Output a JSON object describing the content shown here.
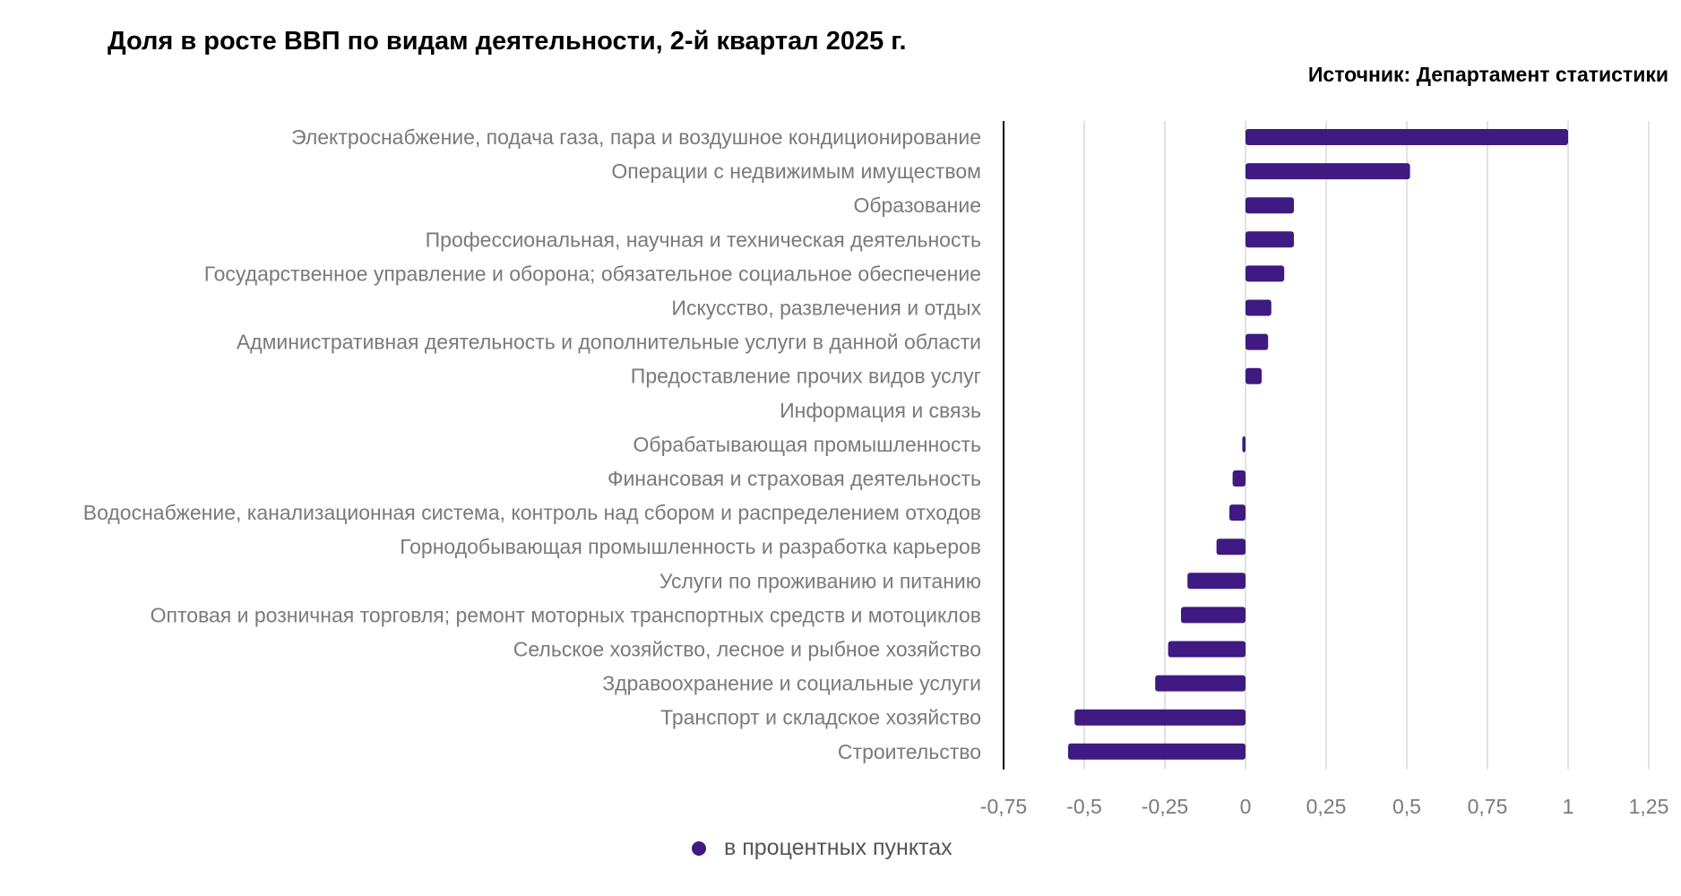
{
  "header": {
    "title": "Доля в росте ВВП по видам деятельности, 2-й квартал 2025 г.",
    "source": "Источник: Департамент статистики"
  },
  "colors": {
    "bar": "#3f1a82",
    "grid": "#d9d9d9",
    "axis": "#000000",
    "label": "#7a7a7a"
  },
  "chart_data": {
    "type": "bar",
    "orientation": "horizontal",
    "title": "Доля в росте ВВП по видам деятельности, 2-й квартал 2025 г.",
    "xlabel": "",
    "ylabel": "",
    "xlim": [
      -0.75,
      1.25
    ],
    "grid": true,
    "legend_position": "bottom-center",
    "categories": [
      "Электроснабжение, подача газа, пара и воздушное кондиционирование",
      "Операции с недвижимым имуществом",
      "Образование",
      "Профессиональная, научная и техническая деятельность",
      "Государственное управление и оборона; обязательное социальное обеспечение",
      "Искусство, развлечения и отдых",
      "Административная деятельность и дополнительные услуги в данной области",
      "Предоставление прочих видов услуг",
      "Информация и связь",
      "Обрабатывающая промышленность",
      "Финансовая и страховая деятельность",
      "Водоснабжение, канализационная система, контроль над сбором и распределением отходов",
      "Горнодобывающая промышленность и разработка карьеров",
      "Услуги по проживанию и питанию",
      "Оптовая и розничная торговля; ремонт моторных транспортных средств и мотоциклов",
      "Сельское хозяйство, лесное и рыбное хозяйство",
      "Здравоохранение и социальные услуги",
      "Транспорт и складское хозяйство",
      "Строительство"
    ],
    "series": [
      {
        "name": "в процентных пунктах",
        "values": [
          1.0,
          0.51,
          0.15,
          0.15,
          0.12,
          0.08,
          0.07,
          0.05,
          0.0,
          -0.01,
          -0.04,
          -0.05,
          -0.09,
          -0.18,
          -0.2,
          -0.24,
          -0.28,
          -0.53,
          -0.55
        ]
      }
    ],
    "ticks": [
      -0.75,
      -0.5,
      -0.25,
      0,
      0.25,
      0.5,
      0.75,
      1,
      1.25
    ],
    "tick_labels": [
      "-0,75",
      "-0,5",
      "-0,25",
      "0",
      "0,25",
      "0,5",
      "0,75",
      "1",
      "1,25"
    ]
  },
  "legend": {
    "label": "в процентных пунктах"
  }
}
